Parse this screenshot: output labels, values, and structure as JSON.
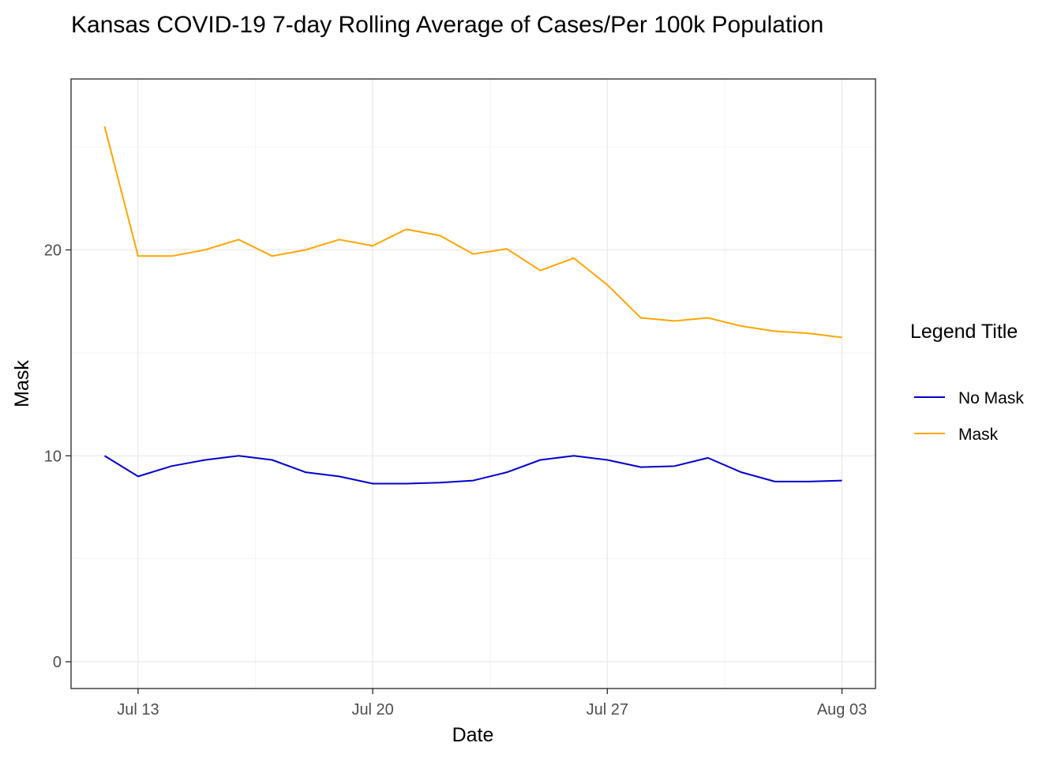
{
  "chart_data": {
    "type": "line",
    "title": "Kansas COVID-19 7-day Rolling Average of Cases/Per 100k Population",
    "xlabel": "Date",
    "ylabel": "Mask",
    "x": [
      "2020-07-12",
      "2020-07-13",
      "2020-07-14",
      "2020-07-15",
      "2020-07-16",
      "2020-07-17",
      "2020-07-18",
      "2020-07-19",
      "2020-07-20",
      "2020-07-21",
      "2020-07-22",
      "2020-07-23",
      "2020-07-24",
      "2020-07-25",
      "2020-07-26",
      "2020-07-27",
      "2020-07-28",
      "2020-07-29",
      "2020-07-30",
      "2020-07-31",
      "2020-08-01",
      "2020-08-02",
      "2020-08-03"
    ],
    "x_ticks": [
      "Jul 13",
      "Jul 20",
      "Jul 27",
      "Aug 03"
    ],
    "x_tick_values": [
      "2020-07-13",
      "2020-07-20",
      "2020-07-27",
      "2020-08-03"
    ],
    "xlim": [
      "2020-07-11",
      "2020-08-04"
    ],
    "y_ticks": [
      "0",
      "10",
      "20"
    ],
    "y_tick_values": [
      0,
      10,
      20
    ],
    "ylim": [
      -1.3,
      28.3
    ],
    "grid": true,
    "legend": {
      "title": "Legend Title",
      "position": "right"
    },
    "series": [
      {
        "name": "No Mask",
        "color": "#0000CD",
        "values": [
          10.0,
          9.0,
          9.5,
          9.8,
          10.0,
          9.8,
          9.2,
          9.0,
          8.65,
          8.65,
          8.7,
          8.8,
          9.2,
          9.8,
          10.0,
          9.8,
          9.45,
          9.5,
          9.9,
          9.2,
          8.75,
          8.75,
          8.8
        ]
      },
      {
        "name": "Mask",
        "color": "#FFA500",
        "values": [
          26.0,
          19.7,
          19.7,
          20.0,
          20.5,
          19.7,
          20.0,
          20.5,
          20.2,
          21.0,
          20.7,
          19.8,
          20.05,
          19.0,
          19.6,
          18.3,
          16.7,
          16.55,
          16.7,
          16.3,
          16.05,
          15.95,
          15.75
        ]
      }
    ]
  }
}
